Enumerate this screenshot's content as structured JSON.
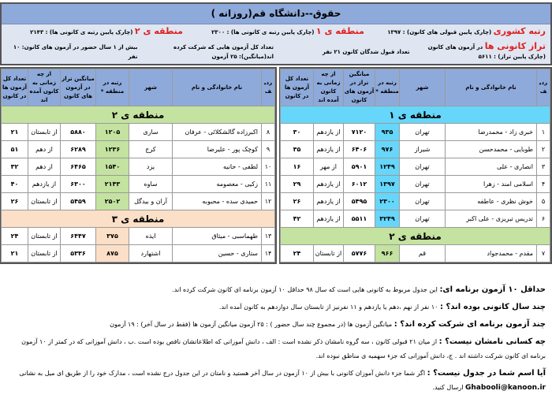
{
  "header": {
    "title": "حقوق--دانشگاه قم(روزانه )",
    "national_rank_label": "رتبه کشوری",
    "national_rank_text": "(چارک پایین قبولی های کانون) : ۱۳۹۷",
    "region1_label": "منطقه ی ۱",
    "region1_text": "(چارک پایین رتبه ی کانونی ها) : ۲۳۰۰",
    "region2_label": "منطقه ی ۲",
    "region2_text": "(چارک پایین رتبه ی کانونی ها) : ۲۱۴۳",
    "taraz_label": "تراز کانونی ها",
    "taraz_text": "در آزمون های کانون (چارک پایین تراز) : ۵۶۱۱",
    "accepted_count": "تعداد قبول شدگان کانون ۲۱ نفر",
    "avg_exams": "تعداد کل آزمون هایی که شرکت کرده اند(میانگین): ۲۵ آزمون",
    "over_one_year": "بیش از ۱ سال حضور در آزمون های کانون: ۱۰ نفر"
  },
  "columns": [
    "ردیف",
    "نام خانوادگی و نام",
    "شهر",
    "رتبه در منطقه *",
    "میانگین تراز در آزمون های کانون",
    "از چه زمانی به کانون آمده اند",
    "تعداد کل آزمون ها در کانون"
  ],
  "right_table": [
    {
      "region": "منطقه ی ۱",
      "color": "#66d6fa",
      "rows": [
        [
          "۱",
          "خبری زاد - محمدرضا",
          "تهران",
          "۹۳۵",
          "۷۱۲۰",
          "از یازدهم",
          "۳۰"
        ],
        [
          "۲",
          "طوبایی - محمدحسن",
          "شیراز",
          "۹۷۶",
          "۶۴۰۶",
          "از یازدهم",
          "۳۵"
        ],
        [
          "۳",
          "انصاری - علی",
          "تهران",
          "۱۲۴۹",
          "۵۹۰۱",
          "از مهر",
          "۱۶"
        ],
        [
          "۴",
          "اسلامی امند - زهرا",
          "تهران",
          "۱۳۹۷",
          "۶۰۱۲",
          "از یازدهم",
          "۲۹"
        ],
        [
          "۵",
          "خوش نظری - عاطفه",
          "تهران",
          "۲۳۰۰",
          "۵۴۹۵",
          "از یازدهم",
          "۲۶"
        ],
        [
          "۶",
          "تدریس تبریزی - علی اکبر",
          "تهران",
          "۳۲۴۹",
          "۵۵۱۱",
          "از یازدهم",
          "۴۲"
        ]
      ]
    },
    {
      "region": "منطقه ی ۲",
      "color": "#c4e2a0",
      "rows": [
        [
          "۷",
          "مقدم - محمدجواد",
          "قم",
          "۹۶۶",
          "۵۷۷۶",
          "از تابستان",
          "۲۴"
        ]
      ]
    }
  ],
  "left_table": [
    {
      "region": "منطقه ی ۲",
      "color": "#c4e2a0",
      "rows": [
        [
          "۸",
          "اکبرزاده گالشکلائی - عرفان",
          "ساری",
          "۱۲۰۵",
          "۵۸۸۰",
          "از تابستان",
          "۲۱"
        ],
        [
          "۹",
          "کوچک پور - علیرضا",
          "کرج",
          "۱۲۳۶",
          "۶۲۸۹",
          "از دهم",
          "۵۱"
        ],
        [
          "۱۰",
          "لطفی - حانیه",
          "یزد",
          "۱۵۴۰",
          "۶۴۶۵",
          "از دهم",
          "۳۲"
        ],
        [
          "۱۱",
          "زکیی - معصومه",
          "ساوه",
          "۲۱۴۳",
          "۶۳۰۰",
          "از یازدهم",
          "۴۰"
        ],
        [
          "۱۲",
          "حمیدی سده - محبوبه",
          "آران و بیدگل",
          "۲۵۰۲",
          "۵۴۵۹",
          "از تابستان",
          "۲۶"
        ]
      ]
    },
    {
      "region": "منطقه ی ۳",
      "color": "#fbdfc6",
      "rows": [
        [
          "۱۳",
          "طهماسبی - میثاق",
          "ایذه",
          "۳۷۵",
          "۶۴۴۷",
          "از تابستان",
          "۲۴"
        ],
        [
          "۱۴",
          "ستاری - حسین",
          "اشتهارد",
          "۸۷۵",
          "۵۳۳۶",
          "از تابستان",
          "۲۱"
        ]
      ]
    }
  ],
  "notes": {
    "n1_title": "حداقل ۱۰ آزمون برنامه ای:",
    "n1_text": " این جدول مربوط به کانونی هایی است که سال ۹۸ حداقل ۱۰ آزمون برنامه ای کانون شرکت کرده اند.",
    "n2_title": "چند سال کانونی بوده اند؟ :",
    "n2_text": " ۱۰ نفر از نهم ،دهم یا یازدهم و ۱۱ نفرنیز از تابستان سال دوازدهم به کانون آمده اند.",
    "n3_title": "چند آزمون برنامه ای شرکت کرده اند؟ :",
    "n3_text": " میانگین آزمون ها (در مجموع چند سال حضور ) : ۲۵ آزمون     میانگین آزمون ها (فقط در سال آخر) : ۱۹ آزمون",
    "n4_title": "چه کسانی نامشان نیست؟ :",
    "n4_text": " از میان ۲۱ قبولی کانون ، سه گروه نامشان ذکر نشده است : الف ، دانش آموزانی که اطلاعاتشان ناقص بوده است .ب ، دانش آموزانی که در کمتر از ۱۰ آزمون برنامه ای کانون شرکت داشته اند . ج، دانش آموزانی که جزء سهمیه ی مناطق نبوده اند.",
    "n5_title": "آیا اسم شما در جدول نیست؟ :",
    "n5_text": " اگر شما جزء دانش آموزان کانونی با بیش از ۱۰ آزمون در سال آخر هستید و نامتان در این جدول درج نشده است ، مدارک خود را از طریق ای میل به نشانی ",
    "email": "Ghabooli@kanoon.ir",
    "n5_end": " ارسال کنید."
  }
}
